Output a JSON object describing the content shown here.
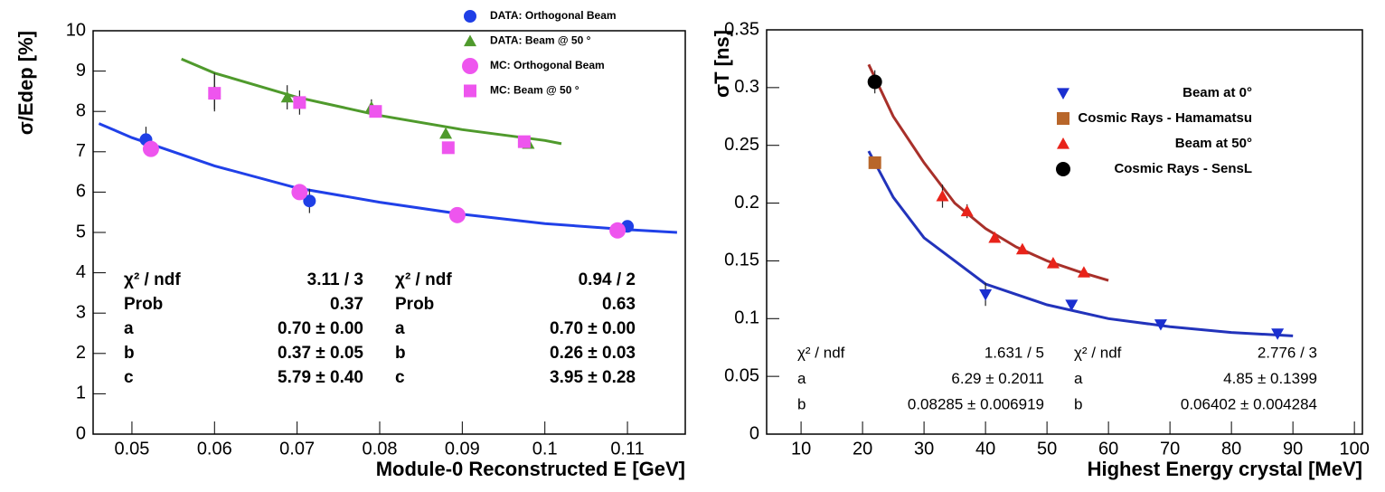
{
  "chart_data": [
    {
      "type": "scatter",
      "xlabel": "Module-0 Reconstructed E [GeV]",
      "ylabel": "σ/Edep [%]",
      "xlim": [
        0.0453,
        0.117
      ],
      "ylim": [
        0,
        10
      ],
      "xticks": [
        0.05,
        0.06,
        0.07,
        0.08,
        0.09,
        0.1,
        0.11
      ],
      "yticks": [
        0,
        1,
        2,
        3,
        4,
        5,
        6,
        7,
        8,
        9,
        10
      ],
      "series": [
        {
          "name": "DATA: Orthogonal Beam",
          "color": "#1f3fe6",
          "marker": "circle",
          "x": [
            0.0517,
            0.0715,
            0.0893,
            0.11
          ],
          "values": [
            7.3,
            5.78,
            5.45,
            5.15
          ],
          "errors": [
            0.32,
            0.3,
            0.05,
            0.05
          ]
        },
        {
          "name": "DATA: Beam  @ 50  °",
          "color": "#4f9a2c",
          "marker": "triangle",
          "x": [
            0.06,
            0.0688,
            0.079,
            0.088,
            0.098
          ],
          "values": [
            8.5,
            8.35,
            8.1,
            7.45,
            7.2
          ],
          "errors": [
            0.45,
            0.3,
            0.2,
            0.05,
            0.05
          ]
        },
        {
          "name": "MC: Orthogonal Beam",
          "color": "#ee55ee",
          "marker": "circle",
          "x": [
            0.0523,
            0.0703,
            0.0894,
            0.1088
          ],
          "values": [
            7.07,
            6.0,
            5.43,
            5.05
          ],
          "errors": [
            0.05,
            0.05,
            0.05,
            0.05
          ]
        },
        {
          "name": "MC: Beam  @ 50  °",
          "color": "#ee55ee",
          "marker": "square",
          "x": [
            0.06,
            0.0703,
            0.0795,
            0.0883,
            0.0975
          ],
          "values": [
            8.45,
            8.22,
            8.0,
            7.1,
            7.25
          ],
          "errors": [
            0.45,
            0.3,
            0.1,
            0.05,
            0.05
          ]
        }
      ],
      "fits": [
        {
          "color": "#4f9a2c",
          "x": [
            0.056,
            0.06,
            0.07,
            0.08,
            0.09,
            0.1,
            0.102
          ],
          "values": [
            9.3,
            8.95,
            8.35,
            7.9,
            7.55,
            7.28,
            7.2
          ]
        },
        {
          "color": "#2040e8",
          "x": [
            0.046,
            0.05,
            0.06,
            0.07,
            0.08,
            0.09,
            0.1,
            0.11,
            0.116
          ],
          "values": [
            7.7,
            7.35,
            6.65,
            6.1,
            5.75,
            5.45,
            5.22,
            5.07,
            5.0
          ]
        }
      ],
      "fit_stats": [
        {
          "color": "#4f9a2c",
          "labels": [
            "χ² / ndf",
            "Prob",
            "a",
            "b",
            "c"
          ],
          "values": [
            "3.11 / 3",
            "0.37",
            "0.70 ±  0.00",
            "0.37 ±  0.05",
            "5.79 ±  0.40"
          ]
        },
        {
          "color": "#1f3fe6",
          "labels": [
            "χ² / ndf",
            "Prob",
            "a",
            "b",
            "c"
          ],
          "values": [
            "0.94 / 2",
            "0.63",
            "0.70 ±  0.00",
            "0.26 ±  0.03",
            "3.95 ±  0.28"
          ]
        }
      ]
    },
    {
      "type": "scatter",
      "xlabel": "Highest Energy crystal [MeV]",
      "ylabel": "σT [ns]",
      "xlim": [
        4.4,
        101.3
      ],
      "ylim": [
        0,
        0.35
      ],
      "xticks": [
        10,
        20,
        30,
        40,
        50,
        60,
        70,
        80,
        90,
        100
      ],
      "yticks": [
        0,
        0.05,
        0.1,
        0.15,
        0.2,
        0.25,
        0.3,
        0.35
      ],
      "series": [
        {
          "name": "Beam at 0°",
          "color": "#1a2fd0",
          "marker": "triangle-down",
          "x": [
            22,
            40,
            54,
            68.5,
            87.5
          ],
          "values": [
            0.236,
            0.121,
            0.112,
            0.095,
            0.087
          ],
          "errors": [
            0.004,
            0.01,
            0.003,
            0.002,
            0.002
          ]
        },
        {
          "name": "Cosmic Rays - Hamamatsu",
          "color": "#b8662a",
          "marker": "square",
          "x": [
            22
          ],
          "values": [
            0.235
          ],
          "errors": [
            0.005
          ]
        },
        {
          "name": "Beam at 50°",
          "color": "#e8231a",
          "marker": "triangle",
          "x": [
            33,
            37,
            41.5,
            46,
            51,
            56
          ],
          "values": [
            0.206,
            0.193,
            0.17,
            0.16,
            0.148,
            0.14
          ],
          "errors": [
            0.01,
            0.006,
            0.003,
            0.003,
            0.003,
            0.003
          ]
        },
        {
          "name": "Cosmic Rays - SensL",
          "color": "#000000",
          "marker": "circle",
          "x": [
            22
          ],
          "values": [
            0.305
          ],
          "errors": [
            0.01
          ]
        }
      ],
      "fits": [
        {
          "color": "#a8302a",
          "x": [
            21,
            25,
            30,
            35,
            40,
            45,
            50,
            55,
            60
          ],
          "values": [
            0.32,
            0.275,
            0.235,
            0.2,
            0.178,
            0.162,
            0.15,
            0.141,
            0.133
          ]
        },
        {
          "color": "#2233bb",
          "x": [
            21,
            25,
            30,
            40,
            50,
            60,
            70,
            80,
            90
          ],
          "values": [
            0.245,
            0.205,
            0.17,
            0.13,
            0.112,
            0.1,
            0.093,
            0.088,
            0.085
          ]
        }
      ],
      "fit_stats": [
        {
          "color": "#9b2a2a",
          "labels": [
            "χ² / ndf",
            "a",
            "b"
          ],
          "values": [
            "1.631 / 5",
            "6.29 ± 0.2011",
            "0.08285 ± 0.006919"
          ]
        },
        {
          "color": "#2a2aa0",
          "labels": [
            "χ² / ndf",
            "a",
            "b"
          ],
          "values": [
            "2.776 / 3",
            "4.85 ± 0.1399",
            "0.06402 ± 0.004284"
          ]
        }
      ]
    }
  ]
}
